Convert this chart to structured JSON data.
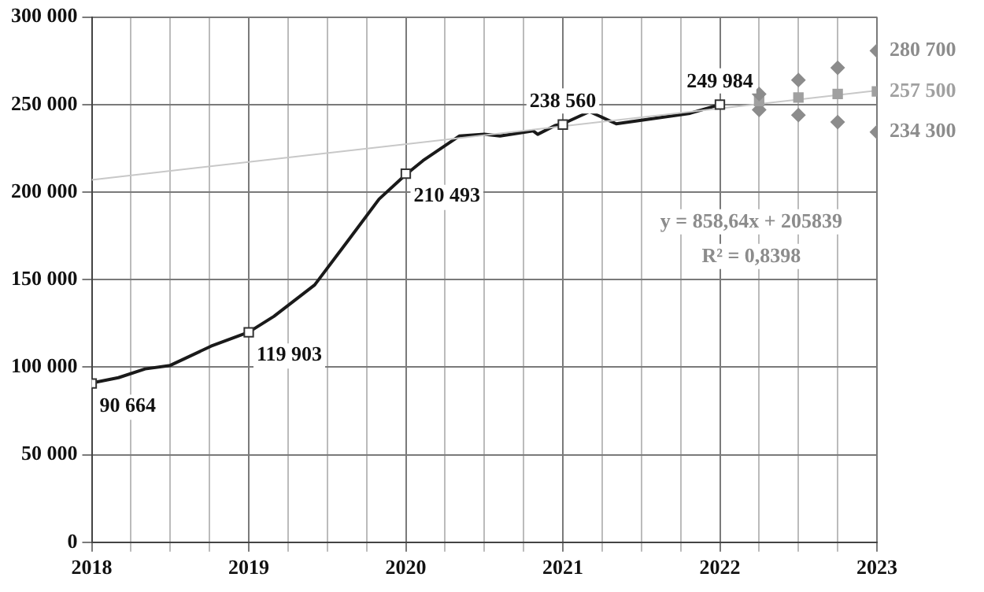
{
  "chart_data": {
    "type": "line",
    "x": [
      2018,
      2018.17,
      2018.34,
      2018.5,
      2018.76,
      2019,
      2019.16,
      2019.42,
      2019.63,
      2019.83,
      2020,
      2020.11,
      2020.34,
      2020.5,
      2020.6,
      2020.81,
      2020.84,
      2020.95,
      2021,
      2021.17,
      2021.34,
      2021.81,
      2022
    ],
    "series": [
      {
        "type": "line",
        "color": "#c8c8c8",
        "marker": "none",
        "x": [
          2018,
          2023
        ],
        "values": [
          207000,
          258000
        ]
      },
      {
        "type": "line",
        "color": "#1a1a1a",
        "marker": "none",
        "values": [
          91000,
          94000,
          99000,
          101000,
          112000,
          120000,
          129000,
          147000,
          172000,
          196000,
          210000,
          218000,
          232000,
          233000,
          232000,
          235000,
          233000,
          238000,
          239000,
          246000,
          239000,
          245000,
          250000
        ]
      },
      {
        "type": "scatter",
        "color": "#ffffff",
        "marker": "square",
        "x": [
          2018,
          2019,
          2020,
          2021,
          2022
        ],
        "values": [
          90664,
          119903,
          210493,
          238560,
          249984
        ],
        "value_labels": [
          "90 664",
          "119 903",
          "210 493",
          "238 560",
          "249 984"
        ]
      },
      {
        "type": "scatter",
        "color": "#8c8c8c",
        "marker": "diamond",
        "x": [
          2022.25,
          2022.5,
          2022.75,
          2023
        ],
        "values": [
          256000,
          264000,
          271000,
          280700
        ],
        "value_labels": [
          null,
          null,
          null,
          "280 700"
        ]
      },
      {
        "type": "scatter",
        "color": "#a0a0a0",
        "marker": "square",
        "x": [
          2022.25,
          2022.5,
          2022.75,
          2023
        ],
        "values": [
          252000,
          254000,
          256000,
          257500
        ],
        "value_labels": [
          null,
          null,
          null,
          "257 500"
        ]
      },
      {
        "type": "scatter",
        "color": "#8c8c8c",
        "marker": "diamond",
        "x": [
          2022.25,
          2022.5,
          2022.75,
          2023
        ],
        "values": [
          247000,
          244000,
          240000,
          234300
        ],
        "value_labels": [
          null,
          null,
          null,
          "234 300"
        ]
      }
    ],
    "xlim": [
      2018,
      2023
    ],
    "xticks": [
      2018,
      {
        "value": 2018.25,
        "label": null
      },
      {
        "value": 2018.5,
        "label": null
      },
      {
        "value": 2018.75,
        "label": null
      },
      2019,
      {
        "value": 2019.25,
        "label": null
      },
      {
        "value": 2019.5,
        "label": null
      },
      {
        "value": 2019.75,
        "label": null
      },
      2020,
      {
        "value": 2020.25,
        "label": null
      },
      {
        "value": 2020.5,
        "label": null
      },
      {
        "value": 2020.75,
        "label": null
      },
      2021,
      {
        "value": 2021.25,
        "label": null
      },
      {
        "value": 2021.5,
        "label": null
      },
      {
        "value": 2021.75,
        "label": null
      },
      2022,
      {
        "value": 2022.25,
        "label": null
      },
      {
        "value": 2022.5,
        "label": null
      },
      {
        "value": 2022.75,
        "label": null
      },
      2023
    ],
    "ylim": [
      0,
      300000
    ],
    "yticks": [
      0,
      {
        "value": 50000,
        "label": "50 000"
      },
      {
        "value": 100000,
        "label": "100 000"
      },
      {
        "value": 150000,
        "label": "150 000"
      },
      {
        "value": 200000,
        "label": "200 000"
      },
      {
        "value": 250000,
        "label": "250 000"
      },
      {
        "value": 300000,
        "label": "300 000"
      }
    ],
    "annotations": [
      "y = 858,64x + 205839",
      "R² = 0,8398"
    ],
    "grid": true,
    "legend": false
  }
}
